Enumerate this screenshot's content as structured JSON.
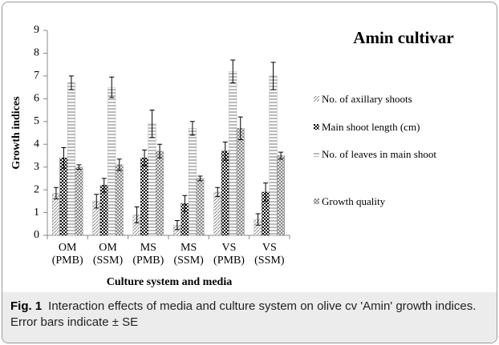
{
  "chart_data": {
    "type": "bar",
    "title": "Amin cultivar",
    "y_label": "Growth indices",
    "x_label": "Culture system and media",
    "categories": [
      "OM (PMB)",
      "OM (SSM)",
      "MS (PMB)",
      "MS (SSM)",
      "VS (PMB)",
      "VS (SSM)"
    ],
    "series": [
      {
        "name": "No. of axillary shoots",
        "color": "#8c8c8c",
        "values": [
          1.85,
          1.5,
          0.9,
          0.45,
          1.9,
          0.7
        ],
        "errors": [
          0.25,
          0.3,
          0.35,
          0.2,
          0.2,
          0.25
        ]
      },
      {
        "name": "Main shoot length (cm)",
        "color": "#000000",
        "values": [
          3.4,
          2.2,
          3.4,
          1.4,
          3.7,
          1.9
        ],
        "errors": [
          0.45,
          0.3,
          0.35,
          0.35,
          0.4,
          0.4
        ]
      },
      {
        "name": "No. of leaves in main shoot",
        "color": "#8c8c8c",
        "values": [
          6.7,
          6.5,
          4.9,
          4.7,
          7.2,
          7.0
        ],
        "errors": [
          0.3,
          0.45,
          0.6,
          0.3,
          0.5,
          0.6
        ]
      },
      {
        "name": "Growth quality",
        "color": "#6e6e6e",
        "values": [
          3.0,
          3.1,
          3.7,
          2.5,
          4.7,
          3.5
        ],
        "errors": [
          0.1,
          0.25,
          0.3,
          0.1,
          0.5,
          0.15
        ]
      }
    ],
    "ylim": [
      0,
      9
    ],
    "yticks": [
      0,
      1,
      2,
      3,
      4,
      5,
      6,
      7,
      8,
      9
    ],
    "grid": false
  },
  "caption": {
    "label": "Fig. 1",
    "text": "Interaction effects of media and culture system on olive cv 'Amin' growth indices. Error bars indicate ± SE"
  }
}
